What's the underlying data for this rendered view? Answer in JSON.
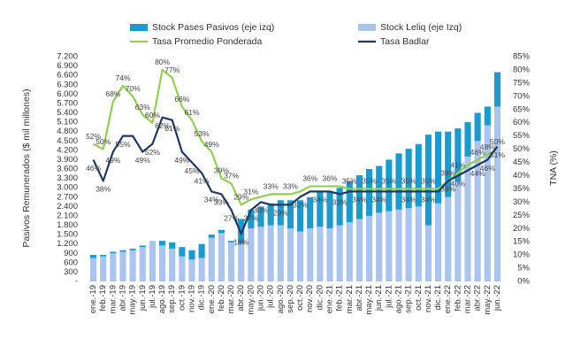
{
  "chart_data": {
    "type": "bar",
    "ylabel": "Pasivos Remunerados ($ mil millones)",
    "y2label": "TNA (%)",
    "categories": [
      "ene.-19",
      "feb.-19",
      "mar.-19",
      "abr.-19",
      "may.-19",
      "jun.-19",
      "jul.-19",
      "ago.-19",
      "sep.-19",
      "oct.-19",
      "nov.-19",
      "dic.-19",
      "ene.-20",
      "feb.-20",
      "mar.-20",
      "abr.-20",
      "may.-20",
      "jun.-20",
      "jul.-20",
      "ago.-20",
      "sep.-20",
      "oct.-20",
      "nov.-20",
      "dic.-20",
      "ene.-21",
      "feb.-21",
      "mar.-21",
      "abr.-21",
      "may.-21",
      "jun.-21",
      "jul.-21",
      "ago.-21",
      "sep.-21",
      "oct.-21",
      "nov.-21",
      "dic.-21",
      "ene.-22",
      "feb.-22",
      "mar.-22",
      "abr.-22",
      "may.-22",
      "jun.-22"
    ],
    "series": [
      {
        "name": "Stock Leliq (eje Izq)",
        "type": "bar",
        "color": "#a9c4ee",
        "values": [
          750,
          800,
          900,
          950,
          1000,
          1100,
          1300,
          1150,
          1050,
          800,
          700,
          750,
          1400,
          1550,
          1250,
          1200,
          1700,
          1750,
          1800,
          1800,
          1700,
          1600,
          1700,
          1750,
          1700,
          1800,
          1900,
          2000,
          2100,
          2200,
          2250,
          2300,
          2350,
          2400,
          1800,
          2500,
          2700,
          3200,
          4000,
          4500,
          5000,
          5600
        ]
      },
      {
        "name": "Stock Pases Pasivos (eje izq)",
        "type": "bar",
        "color": "#1a9bd0",
        "values": [
          100,
          50,
          50,
          50,
          50,
          50,
          0,
          150,
          200,
          300,
          300,
          450,
          100,
          100,
          50,
          800,
          600,
          650,
          700,
          800,
          900,
          1000,
          1000,
          1100,
          1200,
          1200,
          1300,
          1400,
          1500,
          1500,
          1650,
          1800,
          1900,
          2000,
          2900,
          2300,
          2100,
          1700,
          1100,
          900,
          600,
          1100
        ]
      },
      {
        "name": "Tasa Promedio Ponderada",
        "type": "line",
        "axis": "y2",
        "color": "#92d050",
        "values": [
          52,
          50,
          68,
          74,
          70,
          63,
          60,
          80,
          77,
          66,
          61,
          53,
          49,
          39,
          37,
          29,
          31,
          32,
          33,
          33,
          33,
          34,
          36,
          36,
          36,
          36,
          35,
          35,
          35,
          35,
          35,
          35,
          35,
          35,
          35,
          35,
          38,
          41,
          44,
          46,
          48,
          50
        ],
        "value_labels": [
          "52%",
          "50%",
          "68%",
          "74%",
          "70%",
          "63%",
          "60%",
          "80%",
          "77%",
          "66%",
          "61%",
          "53%",
          "49%",
          "39%",
          "37%",
          "29%",
          "31%",
          null,
          "33%",
          null,
          "33%",
          null,
          "36%",
          null,
          "36%",
          null,
          "35%",
          null,
          "35%",
          null,
          "35%",
          null,
          "35%",
          null,
          "35%",
          null,
          "38%",
          "41%",
          null,
          "46%",
          "48%",
          "50%"
        ]
      },
      {
        "name": "Tasa Badlar",
        "type": "line",
        "axis": "y2",
        "color": "#1f3864",
        "values": [
          46,
          38,
          49,
          55,
          55,
          49,
          52,
          62,
          61,
          49,
          45,
          41,
          34,
          33,
          27,
          18,
          27,
          30,
          29,
          29,
          29,
          32,
          34,
          34,
          34,
          33,
          34,
          34,
          34,
          34,
          34,
          34,
          34,
          34,
          34,
          34,
          38,
          40,
          42,
          44,
          46,
          51
        ],
        "value_labels": [
          "46%",
          "38%",
          "49%",
          "55%",
          null,
          "49%",
          "52%",
          "62%",
          "61%",
          "49%",
          "45%",
          "41%",
          "34%",
          "33%",
          "27%",
          "18%",
          "27%",
          "30%",
          null,
          "29%",
          null,
          "32%",
          null,
          "34%",
          null,
          "33%",
          null,
          "34%",
          null,
          "34%",
          null,
          null,
          "34%",
          null,
          "34%",
          null,
          "38%",
          "40%",
          null,
          "44%",
          "46%",
          "51%"
        ]
      }
    ],
    "ylim": [
      0,
      7200
    ],
    "yticks": [
      {
        "value": 0,
        "label": "-"
      },
      300,
      600,
      900,
      {
        "value": 1200,
        "label": "1.200"
      },
      {
        "value": 1500,
        "label": "1.500"
      },
      {
        "value": 1800,
        "label": "1.800"
      },
      {
        "value": 2100,
        "label": "2.100"
      },
      {
        "value": 2400,
        "label": "2.400"
      },
      {
        "value": 2700,
        "label": "2.700"
      },
      {
        "value": 3000,
        "label": "3.000"
      },
      {
        "value": 3300,
        "label": "3.300"
      },
      {
        "value": 3600,
        "label": "3.600"
      },
      {
        "value": 3900,
        "label": "3.900"
      },
      {
        "value": 4200,
        "label": "4.200"
      },
      {
        "value": 4500,
        "label": "4.500"
      },
      {
        "value": 4800,
        "label": "4.800"
      },
      {
        "value": 5100,
        "label": "5.100"
      },
      {
        "value": 5400,
        "label": "5.400"
      },
      {
        "value": 5700,
        "label": "5.700"
      },
      {
        "value": 6000,
        "label": "6.000"
      },
      {
        "value": 6300,
        "label": "6.300"
      },
      {
        "value": 6600,
        "label": "6.600"
      },
      {
        "value": 6900,
        "label": "6.900"
      },
      {
        "value": 7200,
        "label": "7.200"
      }
    ],
    "y2lim": [
      0,
      85
    ],
    "y2ticks": [
      {
        "value": 0,
        "label": "0%"
      },
      {
        "value": 5,
        "label": "5%"
      },
      {
        "value": 10,
        "label": "10%"
      },
      {
        "value": 15,
        "label": "15%"
      },
      {
        "value": 20,
        "label": "20%"
      },
      {
        "value": 25,
        "label": "25%"
      },
      {
        "value": 30,
        "label": "30%"
      },
      {
        "value": 35,
        "label": "35%"
      },
      {
        "value": 40,
        "label": "40%"
      },
      {
        "value": 45,
        "label": "45%"
      },
      {
        "value": 50,
        "label": "50%"
      },
      {
        "value": 55,
        "label": "55%"
      },
      {
        "value": 60,
        "label": "60%"
      },
      {
        "value": 65,
        "label": "65%"
      },
      {
        "value": 70,
        "label": "70%"
      },
      {
        "value": 75,
        "label": "75%"
      },
      {
        "value": 80,
        "label": "80%"
      },
      {
        "value": 85,
        "label": "85%"
      }
    ]
  }
}
